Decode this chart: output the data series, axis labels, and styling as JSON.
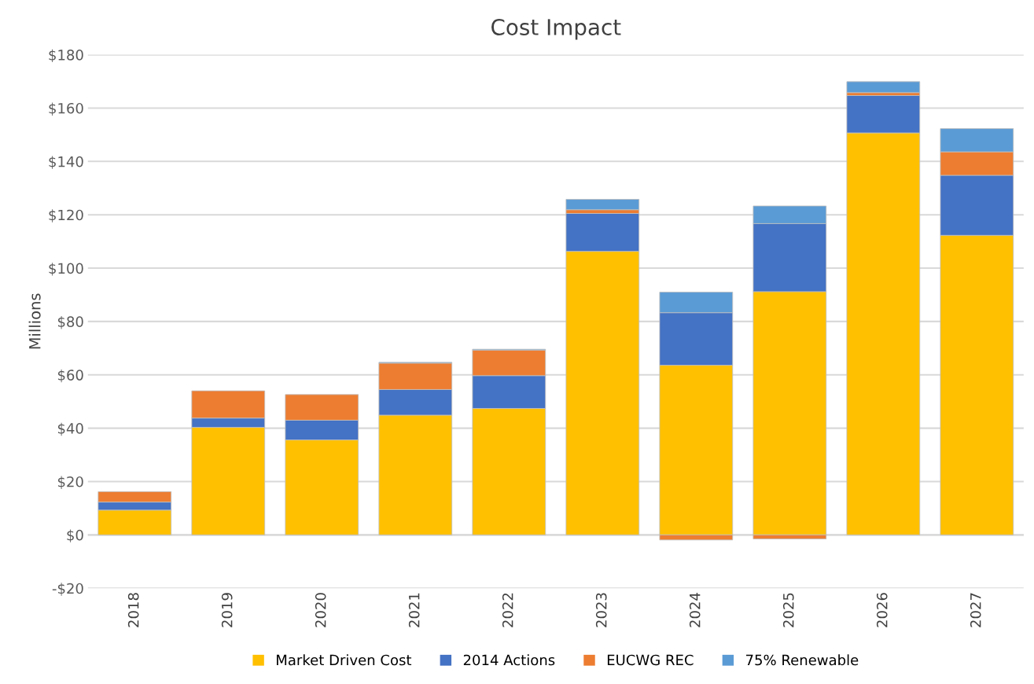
{
  "chart_data": {
    "type": "bar",
    "title": "Cost Impact",
    "ylabel": "Millions",
    "stacked": true,
    "categories": [
      "2018",
      "2019",
      "2020",
      "2021",
      "2022",
      "2023",
      "2024",
      "2025",
      "2026",
      "2027"
    ],
    "series": [
      {
        "name": "Market Driven Cost",
        "color": "#ffc000",
        "values": [
          9.3,
          40.3,
          35.6,
          44.9,
          47.4,
          106.3,
          63.6,
          91.2,
          150.7,
          112.3
        ]
      },
      {
        "name": "2014 Actions",
        "color": "#4472c4",
        "values": [
          3.0,
          3.5,
          7.4,
          9.6,
          12.3,
          14.2,
          19.7,
          25.5,
          14.0,
          22.5
        ]
      },
      {
        "name": "EUCWG REC",
        "color": "#ed7d31",
        "values": [
          3.9,
          10.2,
          9.6,
          9.9,
          9.6,
          1.4,
          -1.9,
          -1.5,
          1.1,
          8.8
        ]
      },
      {
        "name": "75% Renewable",
        "color": "#5b9bd5",
        "values": [
          null,
          null,
          null,
          0.3,
          0.3,
          3.9,
          7.7,
          6.6,
          4.1,
          8.7
        ]
      }
    ],
    "ylim": [
      -20,
      180
    ],
    "yticks": [
      {
        "value": -20,
        "label": "-$20"
      },
      {
        "value": 0,
        "label": "$0"
      },
      {
        "value": 20,
        "label": "$20"
      },
      {
        "value": 40,
        "label": "$40"
      },
      {
        "value": 60,
        "label": "$60"
      },
      {
        "value": 80,
        "label": "$80"
      },
      {
        "value": 100,
        "label": "$100"
      },
      {
        "value": 120,
        "label": "$120"
      },
      {
        "value": 140,
        "label": "$140"
      },
      {
        "value": 160,
        "label": "$160"
      },
      {
        "value": 180,
        "label": "$180"
      }
    ],
    "grid": "y",
    "legend": "bottom"
  }
}
